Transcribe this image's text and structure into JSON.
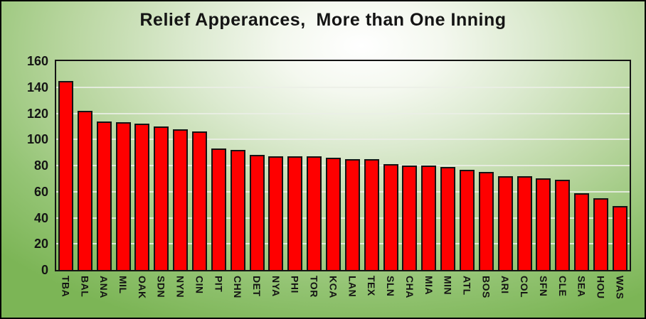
{
  "title": "Relief Apperances,  More than One Inning",
  "colors": {
    "bar_fill": "#fe0000",
    "bar_border": "#141414",
    "text": "#141414",
    "gridline": "#ebeee6",
    "background_green": "#7cb556",
    "background_highlight": "#ffffff",
    "frame_border": "#000000"
  },
  "chart_data": {
    "type": "bar",
    "title": "Relief Apperances,  More than One Inning",
    "xlabel": "",
    "ylabel": "",
    "ylim": [
      0,
      160
    ],
    "yticks": [
      0,
      20,
      40,
      60,
      80,
      100,
      120,
      140,
      160
    ],
    "grid": "horizontal",
    "legend": "none",
    "bar_orientation": "vertical",
    "x_tick_rotation_deg": 90,
    "categories": [
      "TBA",
      "BAL",
      "ANA",
      "MIL",
      "OAK",
      "SDN",
      "NYN",
      "CIN",
      "PIT",
      "CHN",
      "DET",
      "NYA",
      "PHI",
      "TOR",
      "KCA",
      "LAN",
      "TEX",
      "SLN",
      "CHA",
      "MIA",
      "MIN",
      "ATL",
      "BOS",
      "ARI",
      "COL",
      "SFN",
      "CLE",
      "SEA",
      "HOU",
      "WAS"
    ],
    "values": [
      145,
      122,
      114,
      113,
      112,
      110,
      108,
      106,
      93,
      92,
      88,
      87,
      87,
      87,
      86,
      85,
      85,
      81,
      80,
      80,
      79,
      77,
      75,
      72,
      72,
      70,
      69,
      59,
      55,
      49
    ]
  }
}
